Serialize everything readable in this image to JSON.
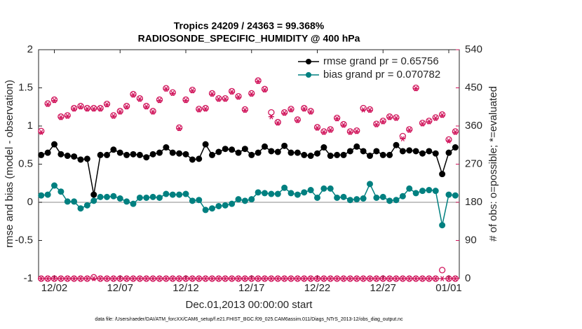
{
  "chart_data": {
    "type": "line",
    "title": "Tropics 24209 / 24363 = 99.368%",
    "subtitle": "RADIOSONDE_SPECIFIC_HUMIDITY @ 400 hPa",
    "xlabel": "Dec.01,2013 00:00:00 start",
    "ylabel": "rmse and bias (model - observation)",
    "y2label": "# of obs: o=possible; *=evaluated",
    "footnote": "data file: /Users/raeder/DAI/ATM_forcXX/CAM6_setup/f.e21.FHIST_BGC.f09_025.CAM6assim.011/Diags_NTrS_2013-12/obs_diag_output.nc",
    "x": [
      0,
      0.5,
      1,
      1.5,
      2,
      2.5,
      3,
      3.5,
      4,
      4.5,
      5,
      5.5,
      6,
      6.5,
      7,
      7.5,
      8,
      8.5,
      9,
      9.5,
      10,
      10.5,
      11,
      11.5,
      12,
      12.5,
      13,
      13.5,
      14,
      14.5,
      15,
      15.5,
      16,
      16.5,
      17,
      17.5,
      18,
      18.5,
      19,
      19.5,
      20,
      20.5,
      21,
      21.5,
      22,
      22.5,
      23,
      23.5,
      24,
      24.5,
      25,
      25.5,
      26,
      26.5,
      27,
      27.5,
      28,
      28.5,
      29,
      29.5,
      30,
      30.5,
      31,
      31.5
    ],
    "xlim": [
      -0.2,
      31.8
    ],
    "xticks": [
      {
        "value": 1,
        "label": "12/02"
      },
      {
        "value": 6,
        "label": "12/07"
      },
      {
        "value": 11,
        "label": "12/12"
      },
      {
        "value": 16,
        "label": "12/17"
      },
      {
        "value": 21,
        "label": "12/22"
      },
      {
        "value": 26,
        "label": "12/27"
      },
      {
        "value": 31,
        "label": "01/01"
      }
    ],
    "ylim": [
      -1,
      2
    ],
    "yticks": [
      -1,
      -0.5,
      0,
      0.5,
      1,
      1.5,
      2
    ],
    "y2lim": [
      0,
      540
    ],
    "y2ticks": [
      0,
      90,
      180,
      270,
      360,
      450,
      540
    ],
    "y2_color": "#d0135a",
    "legend_text_color": "#0b4be0",
    "zero_line": true,
    "series": [
      {
        "name": "rmse grand pr = 0.65756",
        "color": "#000000",
        "line": true,
        "marker": "o",
        "values": [
          0.62,
          0.65,
          0.76,
          0.63,
          0.61,
          0.6,
          0.56,
          0.57,
          0.1,
          0.62,
          0.62,
          0.69,
          0.65,
          0.62,
          0.63,
          0.62,
          0.59,
          0.63,
          0.65,
          0.72,
          0.65,
          0.64,
          0.63,
          0.56,
          0.57,
          0.76,
          0.62,
          0.66,
          0.7,
          0.69,
          0.65,
          0.7,
          0.62,
          0.65,
          0.73,
          0.67,
          0.66,
          0.74,
          0.65,
          0.65,
          0.62,
          0.61,
          0.64,
          0.72,
          0.61,
          0.62,
          0.62,
          0.67,
          0.73,
          0.67,
          0.61,
          0.67,
          0.62,
          0.62,
          0.75,
          0.67,
          0.68,
          0.67,
          0.64,
          0.67,
          0.64,
          0.37,
          0.65,
          0.72
        ]
      },
      {
        "name": "bias grand pr = 0.070782",
        "color": "#008080",
        "line": true,
        "marker": "o",
        "values": [
          0.09,
          0.1,
          0.22,
          0.14,
          0.01,
          0.01,
          -0.08,
          -0.04,
          0.02,
          0.07,
          0.07,
          0.08,
          0.05,
          0.01,
          -0.02,
          0.06,
          0.06,
          0.07,
          0.06,
          0.11,
          0.1,
          0.1,
          0.11,
          0.02,
          0.03,
          -0.1,
          -0.08,
          -0.05,
          -0.04,
          -0.02,
          0.04,
          0.02,
          0.04,
          0.13,
          0.12,
          0.11,
          0.11,
          0.19,
          0.12,
          0.1,
          0.13,
          0.16,
          0.06,
          0.18,
          0.18,
          0.06,
          0.07,
          0.03,
          0.04,
          0.05,
          0.24,
          0.06,
          0.07,
          0.02,
          0.03,
          0.08,
          0.18,
          0.12,
          0.15,
          0.16,
          0.15,
          -0.3,
          0.1,
          0.09
        ]
      },
      {
        "color": "#d0135a",
        "axis": "y2",
        "line": false,
        "marker": "o",
        "values": [
          348,
          413,
          422,
          382,
          385,
          402,
          407,
          402,
          402,
          402,
          412,
          385,
          395,
          407,
          435,
          425,
          407,
          395,
          422,
          449,
          439,
          356,
          422,
          445,
          400,
          402,
          437,
          425,
          425,
          442,
          430,
          399,
          437,
          467,
          447,
          392,
          369,
          392,
          400,
          375,
          402,
          395,
          357,
          347,
          352,
          379,
          364,
          347,
          349,
          402,
          399,
          365,
          372,
          382,
          380,
          336,
          352,
          450,
          367,
          372,
          380,
          387,
          328,
          347
        ]
      },
      {
        "color": "#d0135a",
        "axis": "y2",
        "line": false,
        "marker": "*",
        "values": [
          345,
          411,
          420,
          380,
          383,
          400,
          405,
          400,
          400,
          400,
          410,
          383,
          393,
          405,
          433,
          423,
          405,
          393,
          420,
          447,
          437,
          354,
          420,
          443,
          398,
          400,
          435,
          423,
          423,
          440,
          428,
          397,
          435,
          465,
          445,
          382,
          367,
          390,
          398,
          373,
          400,
          393,
          355,
          345,
          350,
          377,
          362,
          345,
          347,
          398,
          397,
          363,
          370,
          380,
          378,
          330,
          350,
          448,
          365,
          370,
          378,
          385,
          325,
          345
        ]
      },
      {
        "color": "#d0135a",
        "axis": "y2",
        "line": false,
        "marker": "o",
        "values": [
          0,
          0,
          0,
          0,
          0,
          0,
          0,
          0,
          3,
          0,
          0,
          0,
          0,
          0,
          0,
          0,
          0,
          0,
          0,
          0,
          0,
          0,
          0,
          0,
          0,
          0,
          0,
          0,
          0,
          0,
          0,
          0,
          0,
          0,
          0,
          0,
          0,
          0,
          0,
          0,
          0,
          0,
          0,
          0,
          0,
          0,
          0,
          0,
          0,
          0,
          0,
          0,
          0,
          0,
          0,
          0,
          0,
          0,
          0,
          0,
          0,
          20,
          0,
          0
        ]
      },
      {
        "color": "#d0135a",
        "axis": "y2",
        "line": false,
        "marker": "*",
        "values": [
          0,
          0,
          0,
          0,
          0,
          0,
          0,
          0,
          0,
          0,
          0,
          0,
          0,
          0,
          0,
          0,
          0,
          0,
          0,
          0,
          0,
          0,
          0,
          0,
          0,
          0,
          0,
          0,
          0,
          0,
          0,
          0,
          0,
          0,
          0,
          0,
          0,
          0,
          0,
          0,
          0,
          0,
          0,
          0,
          0,
          0,
          0,
          0,
          0,
          0,
          0,
          0,
          0,
          0,
          0,
          0,
          0,
          0,
          0,
          0,
          0,
          0,
          0,
          0
        ]
      }
    ]
  }
}
